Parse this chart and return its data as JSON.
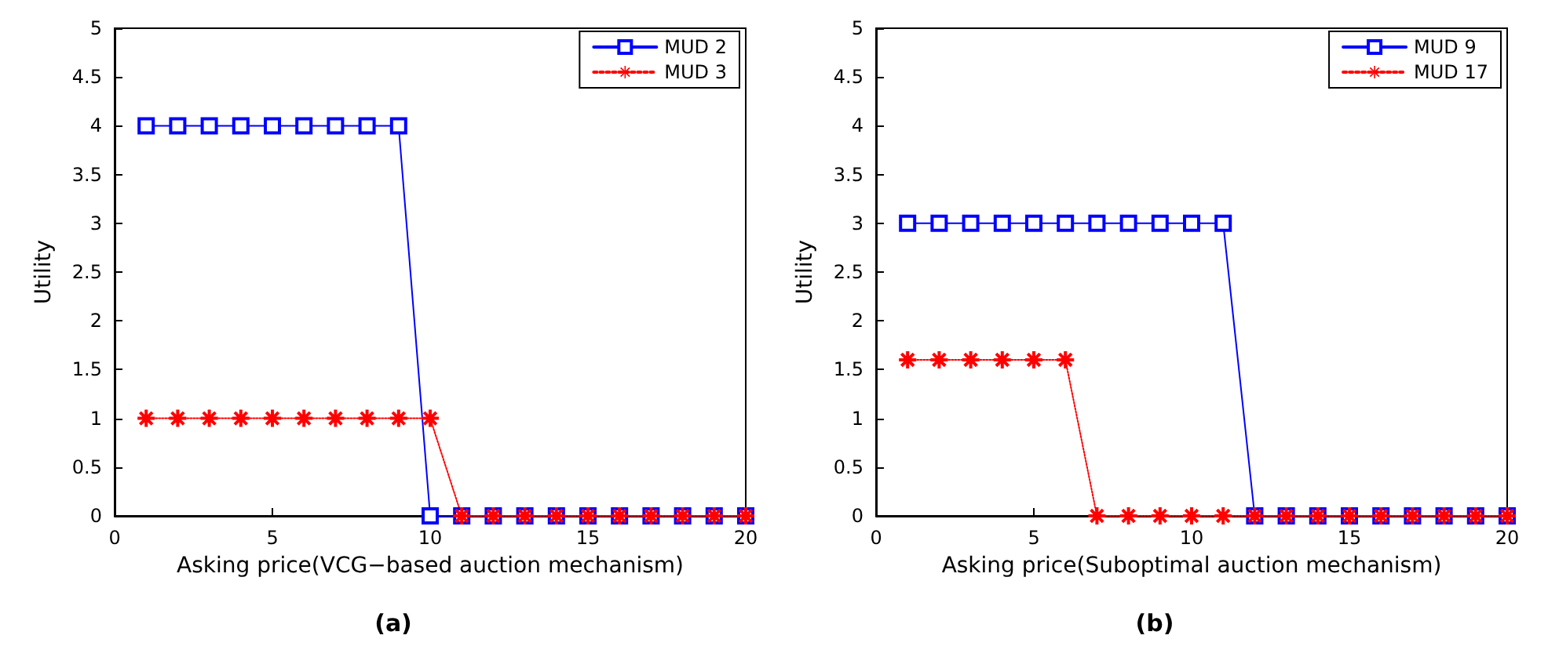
{
  "chart_data": [
    {
      "type": "line",
      "xlabel": "Asking price(VCG−based auction mechanism)",
      "ylabel": "Utility",
      "annotations": [
        "(a)"
      ],
      "xlim": [
        0,
        20
      ],
      "xticks": [
        0,
        5,
        10,
        15,
        20
      ],
      "ylim": [
        0,
        5
      ],
      "yticks": [
        0,
        0.5,
        1,
        1.5,
        2,
        2.5,
        3,
        3.5,
        4,
        4.5,
        5
      ],
      "grid": false,
      "legend": "top right",
      "x": [
        1,
        2,
        3,
        4,
        5,
        6,
        7,
        8,
        9,
        10,
        11,
        12,
        13,
        14,
        15,
        16,
        17,
        18,
        19,
        20
      ],
      "series": [
        {
          "name": "MUD 2",
          "color": "#0000ff",
          "marker": "square",
          "line_style": "solid",
          "values": [
            4,
            4,
            4,
            4,
            4,
            4,
            4,
            4,
            4,
            0,
            0,
            0,
            0,
            0,
            0,
            0,
            0,
            0,
            0,
            0
          ]
        },
        {
          "name": "MUD 3",
          "color": "#ff0000",
          "marker": "star",
          "line_style": "dotted",
          "values": [
            1,
            1,
            1,
            1,
            1,
            1,
            1,
            1,
            1,
            1,
            0,
            0,
            0,
            0,
            0,
            0,
            0,
            0,
            0,
            0
          ]
        }
      ]
    },
    {
      "type": "line",
      "xlabel": "Asking price(Suboptimal auction mechanism)",
      "ylabel": "Utility",
      "annotations": [
        "(b)"
      ],
      "xlim": [
        0,
        20
      ],
      "xticks": [
        0,
        5,
        10,
        15,
        20
      ],
      "ylim": [
        0,
        5
      ],
      "yticks": [
        0,
        0.5,
        1,
        1.5,
        2,
        2.5,
        3,
        3.5,
        4,
        4.5,
        5
      ],
      "grid": false,
      "legend": "top right",
      "x": [
        1,
        2,
        3,
        4,
        5,
        6,
        7,
        8,
        9,
        10,
        11,
        12,
        13,
        14,
        15,
        16,
        17,
        18,
        19,
        20
      ],
      "series": [
        {
          "name": "MUD 9",
          "color": "#0000ff",
          "marker": "square",
          "line_style": "solid",
          "values": [
            3,
            3,
            3,
            3,
            3,
            3,
            3,
            3,
            3,
            3,
            3,
            0,
            0,
            0,
            0,
            0,
            0,
            0,
            0,
            0
          ]
        },
        {
          "name": "MUD 17",
          "color": "#ff0000",
          "marker": "star",
          "line_style": "dotted",
          "values": [
            1.6,
            1.6,
            1.6,
            1.6,
            1.6,
            1.6,
            0,
            0,
            0,
            0,
            0,
            0,
            0,
            0,
            0,
            0,
            0,
            0,
            0,
            0
          ]
        }
      ]
    }
  ]
}
